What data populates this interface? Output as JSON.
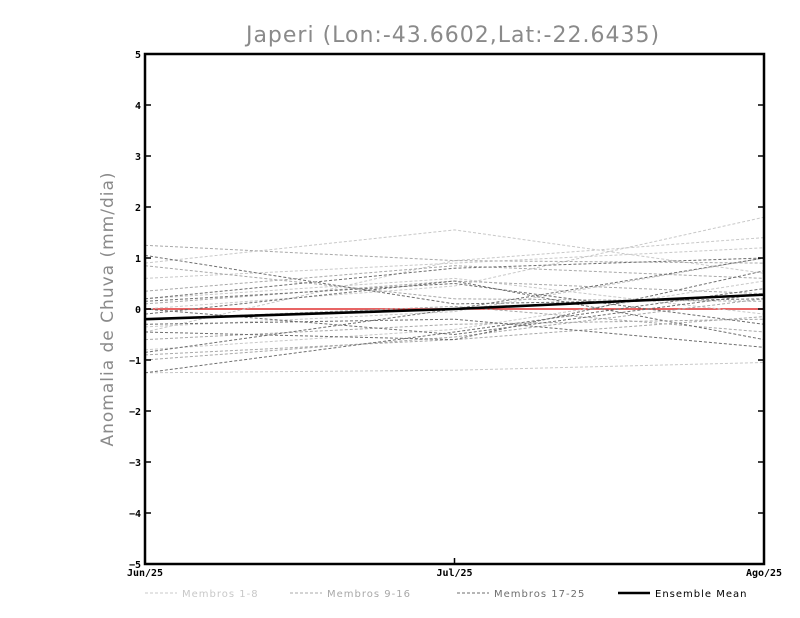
{
  "chart_data": {
    "type": "line",
    "title": "Japeri (Lon:-43.6602,Lat:-22.6435)",
    "xlabel": "",
    "ylabel": "Anomalia de Chuva (mm/dia)",
    "categories": [
      "Jun/25",
      "Jul/25",
      "Ago/25"
    ],
    "ylim": [
      -5,
      5
    ],
    "yticks": [
      -5,
      -4,
      -3,
      -2,
      -1,
      0,
      1,
      2,
      3,
      4,
      5
    ],
    "grid": false,
    "legend": "bottom",
    "zero_line_color": "#e03030",
    "groups": [
      {
        "name": "Membros 1-8",
        "color": "#c8c8c8",
        "dash": true,
        "members": [
          [
            0.6,
            0.9,
            1.2
          ],
          [
            -1.25,
            -1.2,
            -1.05
          ],
          [
            0.0,
            0.45,
            1.8
          ],
          [
            -0.8,
            -0.4,
            0.55
          ],
          [
            0.9,
            1.55,
            0.7
          ],
          [
            -0.45,
            0.95,
            1.4
          ],
          [
            0.2,
            0.6,
            -0.1
          ],
          [
            -0.35,
            -0.05,
            1.0
          ]
        ]
      },
      {
        "name": "Membros 9-16",
        "color": "#a8a8a8",
        "dash": true,
        "members": [
          [
            1.25,
            0.95,
            0.9
          ],
          [
            -1.0,
            -0.55,
            0.2
          ],
          [
            0.35,
            0.85,
            0.6
          ],
          [
            -0.6,
            -0.3,
            -0.2
          ],
          [
            0.1,
            0.55,
            0.3
          ],
          [
            -0.9,
            -0.6,
            -0.15
          ],
          [
            0.85,
            0.2,
            0.15
          ],
          [
            -0.2,
            0.05,
            -0.45
          ]
        ]
      },
      {
        "name": "Membros 17-25",
        "color": "#6e6e6e",
        "dash": true,
        "members": [
          [
            1.05,
            0.1,
            0.2
          ],
          [
            -1.25,
            -0.45,
            0.4
          ],
          [
            0.2,
            0.8,
            1.0
          ],
          [
            -0.45,
            -0.6,
            0.75
          ],
          [
            0.15,
            0.5,
            -0.3
          ],
          [
            -0.3,
            -0.2,
            -0.75
          ],
          [
            -0.1,
            0.55,
            -0.6
          ],
          [
            0.0,
            -0.5,
            0.3
          ],
          [
            -0.85,
            0.0,
            1.0
          ]
        ]
      },
      {
        "name": "Ensemble Mean",
        "color": "#000000",
        "dash": false,
        "members": [
          [
            -0.2,
            0.0,
            0.28
          ]
        ]
      }
    ]
  }
}
